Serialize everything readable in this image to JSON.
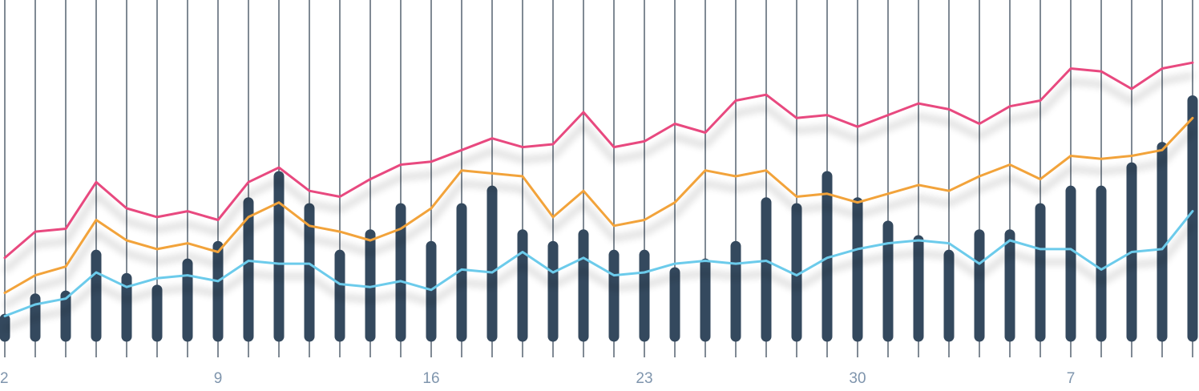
{
  "chart_data": {
    "type": "bar",
    "x_tick_labels": [
      "2",
      "9",
      "16",
      "23",
      "30",
      "7"
    ],
    "x_tick_positions": [
      0,
      7,
      14,
      21,
      28,
      35
    ],
    "ylim": [
      0,
      110
    ],
    "grid": "vertical",
    "bars": [
      6,
      13,
      14,
      28,
      20,
      16,
      25,
      31,
      46,
      55,
      44,
      28,
      35,
      44,
      31,
      44,
      50,
      35,
      31,
      35,
      28,
      28,
      22,
      25,
      31,
      46,
      44,
      55,
      46,
      38,
      33,
      28,
      35,
      35,
      44,
      50,
      50,
      58,
      65,
      81
    ],
    "series": [
      {
        "values": [
          7,
          11,
          13,
          22,
          17,
          20,
          21,
          19,
          26,
          25,
          25,
          18,
          17,
          19,
          16,
          23,
          22,
          29,
          22,
          27,
          21,
          22,
          25,
          26,
          25,
          26,
          21,
          27,
          30,
          32,
          33,
          32,
          25,
          33,
          30,
          30,
          23,
          29,
          30,
          43
        ]
      },
      {
        "values": [
          15,
          21,
          24,
          40,
          33,
          30,
          32,
          29,
          41,
          46,
          38,
          36,
          33,
          37,
          44,
          57,
          56,
          55,
          41,
          50,
          38,
          40,
          46,
          57,
          55,
          57,
          48,
          49,
          46,
          49,
          52,
          50,
          55,
          59,
          54,
          62,
          61,
          62,
          64,
          75
        ]
      },
      {
        "values": [
          27,
          36,
          37,
          53,
          44,
          41,
          43,
          40,
          53,
          58,
          50,
          48,
          54,
          59,
          60,
          64,
          68,
          65,
          66,
          77,
          65,
          67,
          73,
          70,
          81,
          83,
          75,
          76,
          72,
          76,
          80,
          78,
          73,
          79,
          81,
          92,
          91,
          85,
          92,
          94
        ]
      }
    ],
    "colors": {
      "bars": "#34495e",
      "grid": "#3b4a5a",
      "tick_label": "#7f95ad",
      "series": [
        "#6ccbeb",
        "#f2a33a",
        "#e8487f"
      ]
    }
  }
}
